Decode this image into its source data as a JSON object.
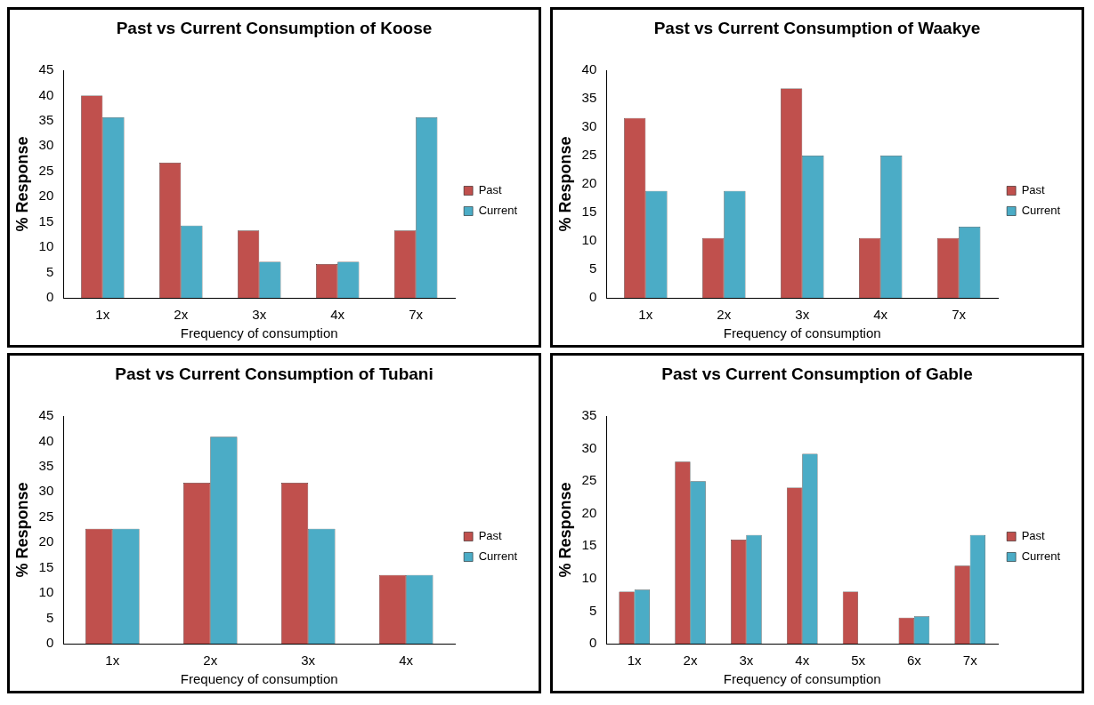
{
  "chart_data": [
    {
      "type": "bar",
      "title": "Past  vs Current Consumption of Koose",
      "xlabel": "Frequency of consumption",
      "ylabel": "% Response",
      "categories": [
        "1x",
        "2x",
        "3x",
        "4x",
        "7x"
      ],
      "series": [
        {
          "name": "Past",
          "color": "#c0504d",
          "values": [
            40,
            26.7,
            13.3,
            6.7,
            13.3
          ]
        },
        {
          "name": "Current",
          "color": "#4bacc6",
          "values": [
            35.7,
            14.3,
            7.1,
            7.1,
            35.7
          ]
        }
      ],
      "ylim": [
        0,
        45
      ],
      "yticks": [
        0,
        5,
        10,
        15,
        20,
        25,
        30,
        35,
        40,
        45
      ],
      "grid": false,
      "legend": "right"
    },
    {
      "type": "bar",
      "title": "Past vs Current Consumption of Waakye",
      "xlabel": "Frequency of consumption",
      "ylabel": "% Response",
      "categories": [
        "1x",
        "2x",
        "3x",
        "4x",
        "7x"
      ],
      "series": [
        {
          "name": "Past",
          "color": "#c0504d",
          "values": [
            31.6,
            10.5,
            36.8,
            10.5,
            10.5
          ]
        },
        {
          "name": "Current",
          "color": "#4bacc6",
          "values": [
            18.8,
            18.8,
            25,
            25,
            12.5
          ]
        }
      ],
      "ylim": [
        0,
        40
      ],
      "yticks": [
        0,
        5,
        10,
        15,
        20,
        25,
        30,
        35,
        40
      ],
      "grid": false,
      "legend": "right"
    },
    {
      "type": "bar",
      "title": "Past  vs Current Consumption of Tubani",
      "xlabel": "Frequency of consumption",
      "ylabel": "% Response",
      "categories": [
        "1x",
        "2x",
        "3x",
        "4x"
      ],
      "series": [
        {
          "name": "Past",
          "color": "#c0504d",
          "values": [
            22.7,
            31.8,
            31.8,
            13.6
          ]
        },
        {
          "name": "Current",
          "color": "#4bacc6",
          "values": [
            22.7,
            40.9,
            22.7,
            13.6
          ]
        }
      ],
      "ylim": [
        0,
        45
      ],
      "yticks": [
        0,
        5,
        10,
        15,
        20,
        25,
        30,
        35,
        40,
        45
      ],
      "grid": false,
      "legend": "right"
    },
    {
      "type": "bar",
      "title": "Past vs Current Consumption of Gable",
      "xlabel": "Frequency of consumption",
      "ylabel": "% Response",
      "categories": [
        "1x",
        "2x",
        "3x",
        "4x",
        "5x",
        "6x",
        "7x"
      ],
      "series": [
        {
          "name": "Past",
          "color": "#c0504d",
          "values": [
            8,
            28,
            16,
            24,
            8,
            4,
            12
          ]
        },
        {
          "name": "Current",
          "color": "#4bacc6",
          "values": [
            8.3,
            25,
            16.7,
            29.2,
            0,
            4.2,
            16.7
          ]
        }
      ],
      "ylim": [
        0,
        35
      ],
      "yticks": [
        0,
        5,
        10,
        15,
        20,
        25,
        30,
        35
      ],
      "grid": false,
      "legend": "right"
    }
  ]
}
